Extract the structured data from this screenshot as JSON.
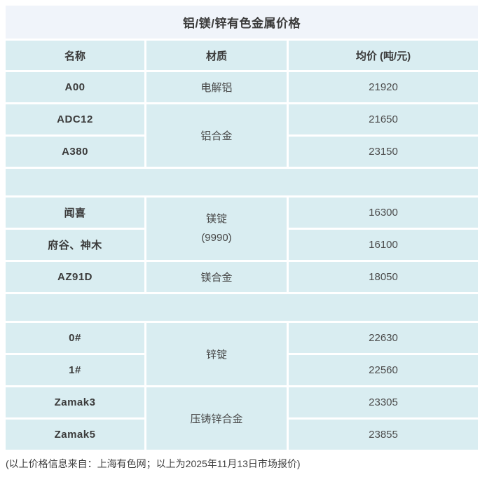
{
  "title": "铝/镁/锌有色金属价格",
  "headers": {
    "name": "名称",
    "material": "材质",
    "price": "均价 (吨/元)"
  },
  "rows": {
    "a00": {
      "name": "A00",
      "material": "电解铝",
      "price": "21920"
    },
    "adc12": {
      "name": "ADC12",
      "material": "铝合金",
      "price": "21650"
    },
    "a380": {
      "name": "A380",
      "price": "23150"
    },
    "wenxi": {
      "name": "闻喜",
      "material_line1": "镁锭",
      "material_line2": "(9990)",
      "price": "16300"
    },
    "fugu": {
      "name": "府谷、神木",
      "price": "16100"
    },
    "az91d": {
      "name": "AZ91D",
      "material": "镁合金",
      "price": "18050"
    },
    "zinc0": {
      "name": "0#",
      "material": "锌锭",
      "price": "22630"
    },
    "zinc1": {
      "name": "1#",
      "price": "22560"
    },
    "zamak3": {
      "name": "Zamak3",
      "material": "压铸锌合金",
      "price": "23305"
    },
    "zamak5": {
      "name": "Zamak5",
      "price": "23855"
    }
  },
  "footer": "(以上价格信息来自：上海有色网；以上为2025年11月13日市场报价)",
  "colors": {
    "cell_background": "#d9edf1",
    "title_background": "#f0f4fa",
    "text_dark": "#3b3b3b",
    "text_price": "#4b4b4b",
    "page_background": "#ffffff"
  },
  "chart_data": {
    "type": "table",
    "title": "铝/镁/锌有色金属价格",
    "columns": [
      "名称",
      "材质",
      "均价 (吨/元)"
    ],
    "rows": [
      [
        "A00",
        "电解铝",
        21920
      ],
      [
        "ADC12",
        "铝合金",
        21650
      ],
      [
        "A380",
        "铝合金",
        23150
      ],
      [
        "闻喜",
        "镁锭 (9990)",
        16300
      ],
      [
        "府谷、神木",
        "镁锭 (9990)",
        16100
      ],
      [
        "AZ91D",
        "镁合金",
        18050
      ],
      [
        "0#",
        "锌锭",
        22630
      ],
      [
        "1#",
        "锌锭",
        22560
      ],
      [
        "Zamak3",
        "压铸锌合金",
        23305
      ],
      [
        "Zamak5",
        "压铸锌合金",
        23855
      ]
    ],
    "source_note": "(以上价格信息来自：上海有色网；以上为2025年11月13日市场报价)"
  }
}
